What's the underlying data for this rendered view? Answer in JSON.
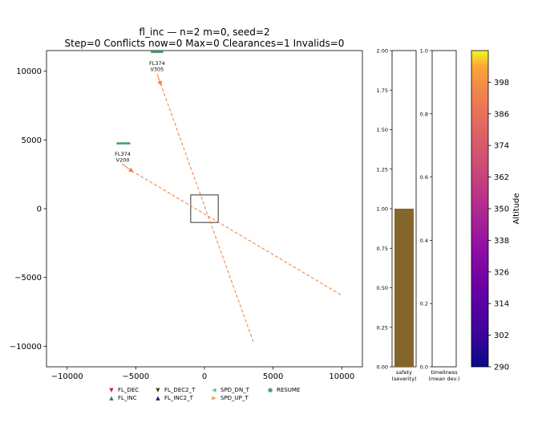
{
  "figure": {
    "title_line1": "fl_inc — n=2 m=0, seed=2",
    "title_line2": "Step=0  Conflicts now=0  Max=0  Clearances=1  Invalids=0"
  },
  "colors": {
    "trajectory": "#f07f3c",
    "aircraft_bar": "#4aa56a",
    "safety_bar": "#85662a",
    "frame": "#000000"
  },
  "chart_data": [
    {
      "type": "scatter",
      "name": "airspace",
      "xlim": [
        -11500,
        11500
      ],
      "ylim": [
        -11500,
        11500
      ],
      "xticks": [
        -10000,
        -5000,
        0,
        5000,
        10000
      ],
      "yticks": [
        -10000,
        -5000,
        0,
        5000,
        10000
      ],
      "xtick_labels": [
        "−10000",
        "−5000",
        "0",
        "5000",
        "10000"
      ],
      "ytick_labels": [
        "−10000",
        "−5000",
        "0",
        "5000",
        "10000"
      ],
      "center_box": {
        "x": [
          -1000,
          1000
        ],
        "y": [
          -1000,
          1000
        ]
      },
      "aircraft": [
        {
          "label_line1": "FL374",
          "label_line2": "V200",
          "bar_x": [
            -6400,
            -5400
          ],
          "bar_y": 4750,
          "label_x": -5950,
          "label_y": 3500,
          "arrow_from": [
            -6000,
            3250
          ],
          "arrow_to": [
            -5300,
            2750
          ],
          "line_to": [
            10000,
            -6300
          ]
        },
        {
          "label_line1": "FL374",
          "label_line2": "V305",
          "bar_x": [
            -3900,
            -3000
          ],
          "bar_y": 11400,
          "label_x": -3450,
          "label_y": 10100,
          "arrow_from": [
            -3450,
            9800
          ],
          "arrow_to": [
            -3200,
            9100
          ],
          "line_to": [
            3600,
            -9800
          ]
        }
      ]
    },
    {
      "type": "bar",
      "name": "safety",
      "categories": [
        "safety (severity)"
      ],
      "xlabel_line1": "safety",
      "xlabel_line2": "(severity)",
      "values": [
        1.0
      ],
      "ylim": [
        0,
        2.0
      ],
      "yticks": [
        0.0,
        0.25,
        0.5,
        0.75,
        1.0,
        1.25,
        1.5,
        1.75,
        2.0
      ],
      "ytick_labels": [
        "0.00",
        "0.25",
        "0.50",
        "0.75",
        "1.00",
        "1.25",
        "1.50",
        "1.75",
        "2.00"
      ]
    },
    {
      "type": "bar",
      "name": "timeliness",
      "categories": [
        "timeliness (mean dev.)"
      ],
      "xlabel_line1": "timeliness",
      "xlabel_line2": "(mean dev.)",
      "values": [
        0.0
      ],
      "ylim": [
        0,
        1.0
      ],
      "yticks": [
        0.0,
        0.2,
        0.4,
        0.6,
        0.8,
        1.0
      ],
      "ytick_labels": [
        "0.0",
        "0.2",
        "0.4",
        "0.6",
        "0.8",
        "1.0"
      ]
    },
    {
      "type": "heatmap",
      "name": "altitude-colorbar",
      "label": "Altitude",
      "colormap": "plasma",
      "range": [
        290,
        410
      ],
      "ticks": [
        290,
        302,
        314,
        326,
        338,
        350,
        362,
        374,
        386,
        398
      ],
      "tick_labels": [
        "290",
        "302",
        "314",
        "326",
        "338",
        "350",
        "362",
        "374",
        "386",
        "398"
      ]
    }
  ],
  "legend": [
    {
      "label": "FL_DEC",
      "symbol": "▼",
      "color": "#d62728"
    },
    {
      "label": "FL_INC",
      "symbol": "▲",
      "color": "#4a6a8a"
    },
    {
      "label": "FL_DEC2_T",
      "symbol": "▼",
      "color": "#5a3a10"
    },
    {
      "label": "FL_INC2_T",
      "symbol": "▲",
      "color": "#1a1a7a"
    },
    {
      "label": "SPD_DN_T",
      "symbol": "◀",
      "color": "#6fbf85"
    },
    {
      "label": "SPD_UP_T",
      "symbol": "▶",
      "color": "#f5a050"
    },
    {
      "label": "RESUME",
      "symbol": "●",
      "color": "#4aa56a"
    }
  ]
}
